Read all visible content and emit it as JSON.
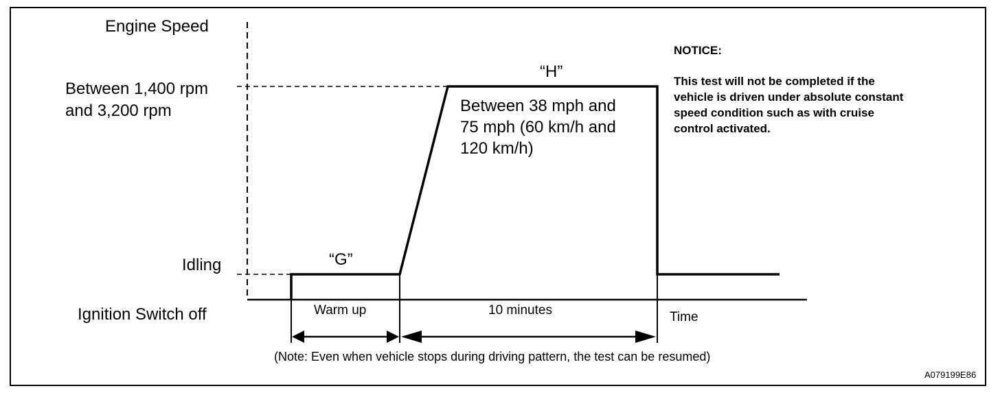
{
  "y_axis": {
    "title": "Engine Speed",
    "high_label": [
      "Between 1,400 rpm",
      "and 3,200 rpm"
    ],
    "idle_label": "Idling",
    "off_label": "Ignition Switch off"
  },
  "x_axis": {
    "title": "Time"
  },
  "zones": {
    "g": {
      "label": "“G”",
      "duration_label": "Warm up"
    },
    "h": {
      "label": "“H”",
      "description": [
        "Between 38 mph and",
        "75 mph (60 km/h and",
        "120 km/h)"
      ],
      "duration_label": "10 minutes"
    }
  },
  "note": "(Note: Even when vehicle stops during driving pattern, the test can be resumed)",
  "notice": {
    "title": "NOTICE:",
    "lines": [
      "This test will not be completed if the",
      "vehicle is driven under absolute constant",
      "speed condition such as with cruise",
      "control activated."
    ]
  },
  "figure_id": "A079199E86"
}
